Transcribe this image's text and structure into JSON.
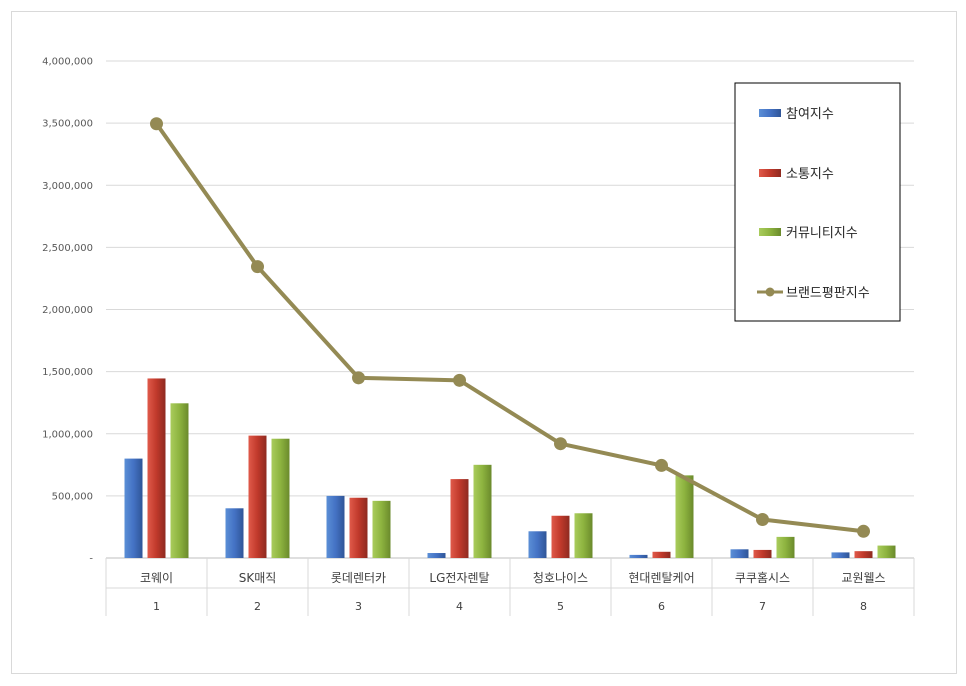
{
  "chart_data": {
    "type": "bar",
    "categories": [
      "코웨이",
      "SK매직",
      "롯데렌터카",
      "LG전자렌탈",
      "청호나이스",
      "현대렌탈케어",
      "쿠쿠홈시스",
      "교원웰스"
    ],
    "category_index": [
      "1",
      "2",
      "3",
      "4",
      "5",
      "6",
      "7",
      "8"
    ],
    "y_ticks": [
      "-",
      "500,000",
      "1,000,000",
      "1,500,000",
      "2,000,000",
      "2,500,000",
      "3,000,000",
      "3,500,000",
      "4,000,000"
    ],
    "ylim": [
      0,
      4000000
    ],
    "grid": true,
    "legend_position": "right",
    "series": [
      {
        "name": "참여지수",
        "type": "bar",
        "color": "#4472c4",
        "values": [
          800000,
          400000,
          500000,
          40000,
          215000,
          25000,
          70000,
          45000
        ]
      },
      {
        "name": "소통지수",
        "type": "bar",
        "color": "#c0392b",
        "values": [
          1445000,
          985000,
          485000,
          635000,
          340000,
          50000,
          65000,
          55000
        ]
      },
      {
        "name": "커뮤니티지수",
        "type": "bar",
        "color": "#8db33f",
        "values": [
          1245000,
          960000,
          460000,
          750000,
          360000,
          665000,
          170000,
          100000
        ]
      },
      {
        "name": "브랜드평판지수",
        "type": "line",
        "color": "#948a54",
        "values": [
          3495000,
          2345000,
          1450000,
          1430000,
          920000,
          745000,
          310000,
          215000
        ]
      }
    ]
  }
}
